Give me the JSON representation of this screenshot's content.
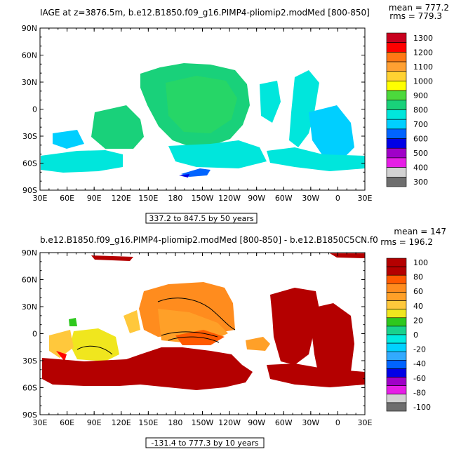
{
  "panels": [
    {
      "title": "IAGE at z=3876.5m, b.e12.B1850.f09_g16.PIMP4-pliomip2.modMed [800-850]",
      "mean_label": "mean = 777.2",
      "rms_label": "rms = 779.3",
      "range_label": "337.2 to 847.5 by 50 years",
      "colorbar_labels": [
        "1300",
        "1200",
        "1100",
        "1000",
        "900",
        "800",
        "700",
        "600",
        "500",
        "400",
        "300"
      ],
      "colorbar_colors": [
        "#c8001e",
        "#ff0000",
        "#ff7814",
        "#ffa032",
        "#ffd232",
        "#ffff00",
        "#4cd93c",
        "#19d17a",
        "#00e6dc",
        "#00cfff",
        "#0064ff",
        "#0000e6",
        "#a000c8",
        "#e61ee6",
        "#d2d2d2",
        "#6e6e6e"
      ]
    },
    {
      "title": "b.e12.B1850.f09_g16.PIMP4-pliomip2.modMed [800-850] - b.e12.B1850C5CN.f0",
      "mean_label": "mean = 147",
      "rms_label": "rms = 196.2",
      "range_label": "-131.4 to 777.3 by 10 years",
      "colorbar_labels": [
        "100",
        "80",
        "60",
        "40",
        "20",
        "0",
        "-20",
        "-40",
        "-60",
        "-80",
        "-100"
      ],
      "colorbar_colors": [
        "#b40000",
        "#b40000",
        "#ff5a00",
        "#ff8c1e",
        "#ffa028",
        "#ffc83c",
        "#f0e61e",
        "#2ec81e",
        "#19d28c",
        "#00ebe1",
        "#00d2ff",
        "#32aaff",
        "#0064ff",
        "#0000e6",
        "#a000c8",
        "#e61ee6",
        "#d2d2d2",
        "#6e6e6e"
      ]
    }
  ],
  "lat_labels": [
    "90N",
    "60N",
    "30N",
    "0",
    "30S",
    "60S",
    "90S"
  ],
  "lon_labels": [
    "30E",
    "60E",
    "90E",
    "120E",
    "150E",
    "180",
    "150W",
    "120W",
    "90W",
    "60W",
    "30W",
    "0",
    "30E"
  ]
}
